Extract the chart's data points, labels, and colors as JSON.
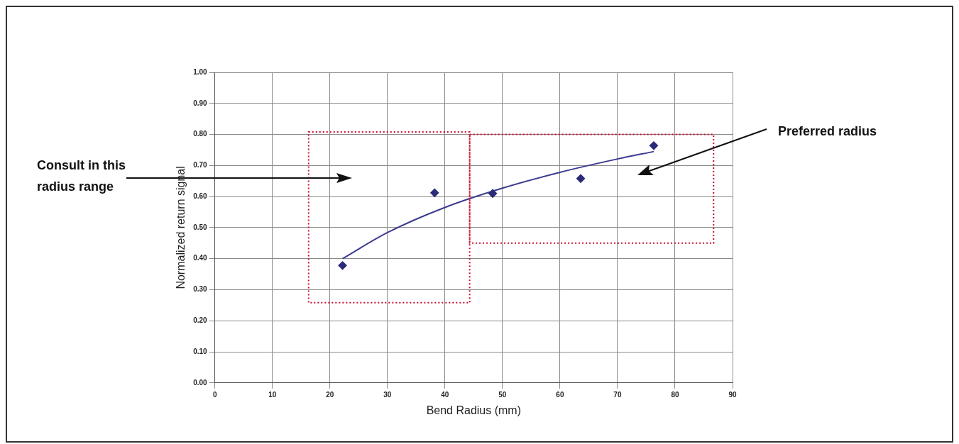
{
  "chart_data": {
    "type": "scatter",
    "xlabel": "Bend Radius (mm)",
    "ylabel": "Normalized return signal",
    "series": [
      {
        "color": "#2b2b7a",
        "marker": "diamond",
        "x": [
          22.2,
          38.2,
          48.3,
          63.6,
          76.3
        ],
        "values": [
          0.378,
          0.612,
          0.61,
          0.658,
          0.764
        ]
      },
      {
        "type": "line",
        "color": "#3b3b8f",
        "marker": "none",
        "line_style": "solid",
        "x": [
          22.2,
          30,
          40,
          50,
          60,
          70,
          76.3
        ],
        "values": [
          0.4,
          0.484,
          0.565,
          0.627,
          0.678,
          0.721,
          0.745
        ]
      }
    ],
    "xlim": [
      0,
      90
    ],
    "xticks": [
      0,
      10,
      20,
      30,
      40,
      50,
      60,
      70,
      80,
      90
    ],
    "ylim": [
      0,
      1
    ],
    "yticks": [
      {
        "value": 0,
        "label": "0.00"
      },
      {
        "value": 0.1,
        "label": "0.10"
      },
      {
        "value": 0.2,
        "label": "0.20"
      },
      {
        "value": 0.3,
        "label": "0.30"
      },
      {
        "value": 0.4,
        "label": "0.40"
      },
      {
        "value": 0.5,
        "label": "0.50"
      },
      {
        "value": 0.6,
        "label": "0.60"
      },
      {
        "value": 0.7,
        "label": "0.70"
      },
      {
        "value": 0.8,
        "label": "0.80"
      },
      {
        "value": 0.9,
        "label": "0.90"
      },
      {
        "value": 1,
        "label": "1.00"
      }
    ],
    "grid": true,
    "legend": false,
    "annotations": [
      "Consult in this radius range",
      "Preferred radius"
    ]
  }
}
